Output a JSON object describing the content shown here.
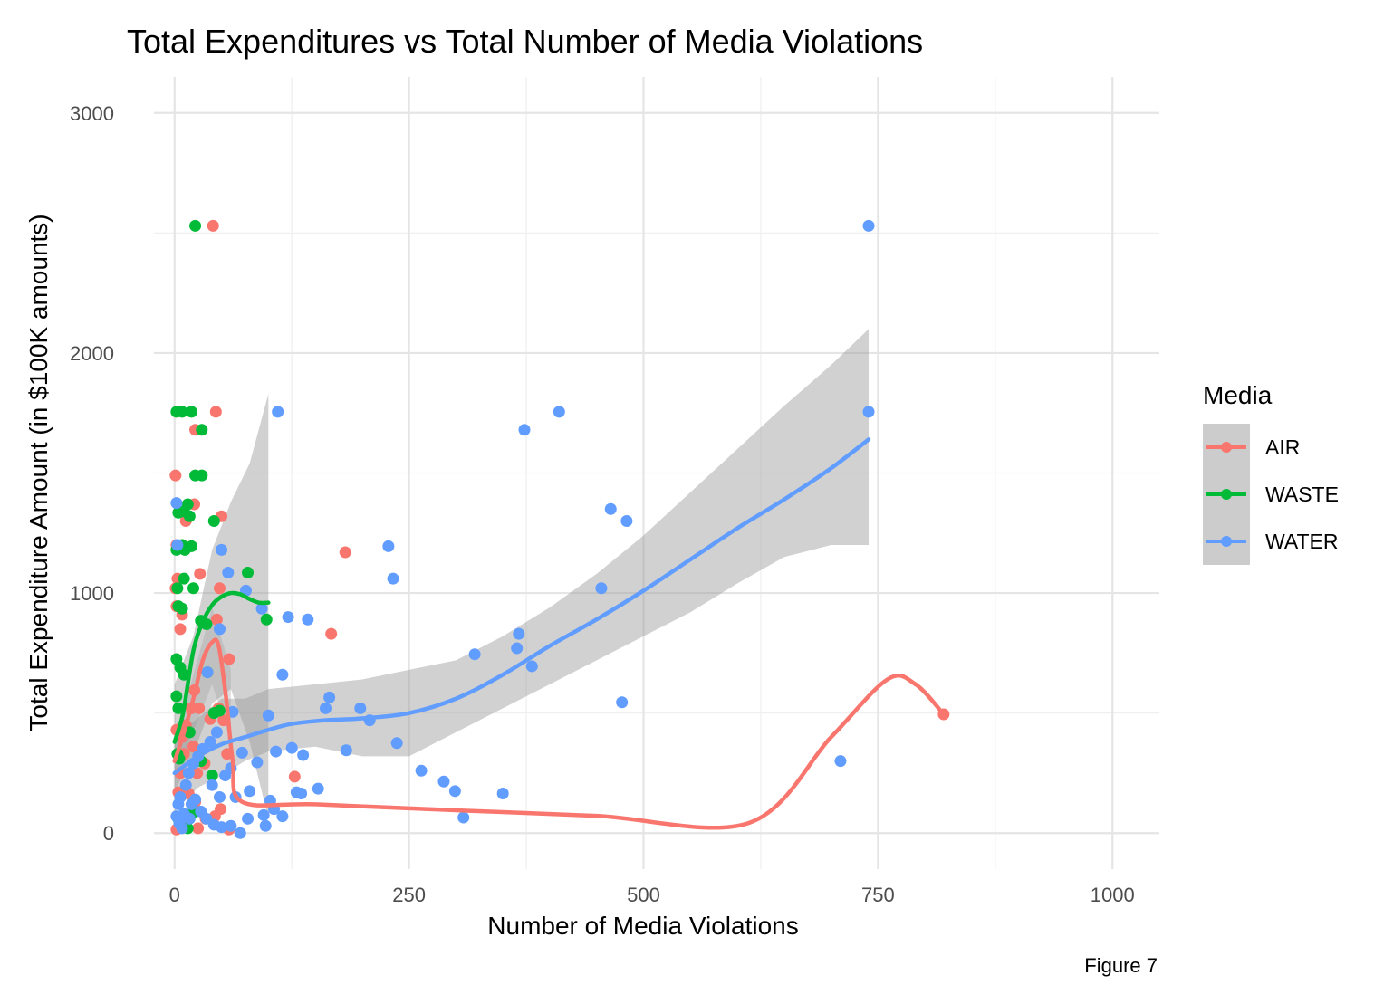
{
  "chart_data": {
    "type": "scatter",
    "title": "Total Expenditures vs Total Number of Media Violations",
    "xlabel": "Number of Media Violations",
    "ylabel": "Total Expenditure Amount (in $100K amounts)",
    "caption": "Figure 7",
    "xlim": [
      -22,
      1050
    ],
    "ylim": [
      -150,
      3150
    ],
    "x_ticks": [
      0,
      250,
      500,
      750,
      1000
    ],
    "y_ticks": [
      0,
      1000,
      2000,
      3000
    ],
    "x_tick_labels": [
      "0",
      "250",
      "500",
      "750",
      "1000"
    ],
    "y_tick_labels": [
      "0",
      "1000",
      "2000",
      "3000"
    ],
    "grid": true,
    "legend": {
      "title": "Media",
      "position": "right"
    },
    "series": [
      {
        "name": "AIR",
        "color": "#F8766D",
        "points": [
          [
            41,
            2530
          ],
          [
            44,
            1755
          ],
          [
            1,
            1490
          ],
          [
            22,
            1680
          ],
          [
            21,
            1370
          ],
          [
            12,
            1300
          ],
          [
            50,
            1320
          ],
          [
            2,
            1200
          ],
          [
            3,
            1060
          ],
          [
            27,
            1080
          ],
          [
            1,
            1020
          ],
          [
            182,
            1170
          ],
          [
            45,
            890
          ],
          [
            8,
            910
          ],
          [
            6,
            850
          ],
          [
            48,
            1020
          ],
          [
            2,
            945
          ],
          [
            167,
            830
          ],
          [
            58,
            725
          ],
          [
            21,
            595
          ],
          [
            18,
            520
          ],
          [
            26,
            520
          ],
          [
            38,
            475
          ],
          [
            47,
            520
          ],
          [
            12,
            450
          ],
          [
            8,
            400
          ],
          [
            2,
            430
          ],
          [
            52,
            470
          ],
          [
            20,
            360
          ],
          [
            10,
            330
          ],
          [
            56,
            330
          ],
          [
            32,
            290
          ],
          [
            6,
            250
          ],
          [
            24,
            250
          ],
          [
            4,
            170
          ],
          [
            15,
            165
          ],
          [
            22,
            130
          ],
          [
            49,
            100
          ],
          [
            43,
            70
          ],
          [
            33,
            60
          ],
          [
            7,
            45
          ],
          [
            12,
            30
          ],
          [
            58,
            15
          ],
          [
            2,
            15
          ],
          [
            25,
            20
          ],
          [
            128,
            235
          ],
          [
            820,
            495
          ]
        ],
        "smooth": [
          [
            0,
            300
          ],
          [
            10,
            420
          ],
          [
            20,
            560
          ],
          [
            30,
            720
          ],
          [
            40,
            795
          ],
          [
            47,
            780
          ],
          [
            55,
            560
          ],
          [
            62,
            300
          ],
          [
            72,
            130
          ],
          [
            150,
            120
          ],
          [
            300,
            95
          ],
          [
            450,
            72
          ],
          [
            612,
            42
          ],
          [
            700,
            400
          ],
          [
            760,
            640
          ],
          [
            790,
            620
          ],
          [
            820,
            495
          ]
        ]
      },
      {
        "name": "WASTE",
        "color": "#00BA38",
        "points": [
          [
            22,
            2530
          ],
          [
            2,
            1755
          ],
          [
            8,
            1755
          ],
          [
            18,
            1755
          ],
          [
            29,
            1680
          ],
          [
            22,
            1490
          ],
          [
            29,
            1490
          ],
          [
            14,
            1370
          ],
          [
            10,
            1340
          ],
          [
            4,
            1335
          ],
          [
            16,
            1320
          ],
          [
            42,
            1300
          ],
          [
            8,
            1200
          ],
          [
            18,
            1195
          ],
          [
            11,
            1180
          ],
          [
            2,
            1180
          ],
          [
            10,
            1060
          ],
          [
            3,
            1020
          ],
          [
            20,
            1020
          ],
          [
            78,
            1085
          ],
          [
            4,
            945
          ],
          [
            8,
            935
          ],
          [
            98,
            890
          ],
          [
            34,
            870
          ],
          [
            28,
            885
          ],
          [
            2,
            725
          ],
          [
            6,
            690
          ],
          [
            10,
            660
          ],
          [
            35,
            670
          ],
          [
            2,
            570
          ],
          [
            4,
            520
          ],
          [
            42,
            500
          ],
          [
            48,
            510
          ],
          [
            16,
            420
          ],
          [
            3,
            330
          ],
          [
            5,
            310
          ],
          [
            28,
            300
          ],
          [
            40,
            240
          ],
          [
            22,
            90
          ],
          [
            18,
            80
          ],
          [
            4,
            60
          ],
          [
            14,
            20
          ]
        ],
        "smooth": [
          [
            0,
            380
          ],
          [
            5,
            440
          ],
          [
            10,
            520
          ],
          [
            20,
            760
          ],
          [
            30,
            880
          ],
          [
            40,
            950
          ],
          [
            50,
            985
          ],
          [
            60,
            1000
          ],
          [
            70,
            995
          ],
          [
            80,
            975
          ],
          [
            90,
            960
          ],
          [
            100,
            960
          ]
        ]
      },
      {
        "name": "WATER",
        "color": "#619CFF",
        "points": [
          [
            740,
            2530
          ],
          [
            740,
            1755
          ],
          [
            410,
            1755
          ],
          [
            110,
            1755
          ],
          [
            373,
            1680
          ],
          [
            465,
            1350
          ],
          [
            482,
            1300
          ],
          [
            228,
            1195
          ],
          [
            2,
            1375
          ],
          [
            3,
            1200
          ],
          [
            50,
            1180
          ],
          [
            233,
            1060
          ],
          [
            57,
            1085
          ],
          [
            455,
            1020
          ],
          [
            76,
            1010
          ],
          [
            121,
            900
          ],
          [
            142,
            890
          ],
          [
            93,
            935
          ],
          [
            367,
            830
          ],
          [
            365,
            770
          ],
          [
            320,
            745
          ],
          [
            381,
            695
          ],
          [
            48,
            850
          ],
          [
            35,
            670
          ],
          [
            115,
            660
          ],
          [
            477,
            545
          ],
          [
            165,
            565
          ],
          [
            198,
            520
          ],
          [
            161,
            520
          ],
          [
            208,
            470
          ],
          [
            62,
            505
          ],
          [
            100,
            490
          ],
          [
            237,
            375
          ],
          [
            183,
            345
          ],
          [
            108,
            340
          ],
          [
            125,
            355
          ],
          [
            137,
            325
          ],
          [
            72,
            335
          ],
          [
            88,
            295
          ],
          [
            710,
            300
          ],
          [
            263,
            260
          ],
          [
            287,
            215
          ],
          [
            299,
            175
          ],
          [
            350,
            165
          ],
          [
            308,
            65
          ],
          [
            130,
            170
          ],
          [
            135,
            165
          ],
          [
            153,
            185
          ],
          [
            80,
            175
          ],
          [
            65,
            150
          ],
          [
            102,
            135
          ],
          [
            78,
            60
          ],
          [
            95,
            75
          ],
          [
            106,
            100
          ],
          [
            115,
            70
          ],
          [
            97,
            30
          ],
          [
            60,
            30
          ],
          [
            50,
            25
          ],
          [
            42,
            35
          ],
          [
            34,
            60
          ],
          [
            28,
            90
          ],
          [
            18,
            120
          ],
          [
            10,
            80
          ],
          [
            5,
            40
          ],
          [
            8,
            20
          ],
          [
            2,
            70
          ],
          [
            4,
            120
          ],
          [
            6,
            150
          ],
          [
            12,
            200
          ],
          [
            15,
            250
          ],
          [
            20,
            290
          ],
          [
            25,
            320
          ],
          [
            30,
            350
          ],
          [
            38,
            380
          ],
          [
            45,
            420
          ],
          [
            54,
            240
          ],
          [
            60,
            270
          ],
          [
            70,
            0
          ],
          [
            40,
            200
          ],
          [
            48,
            150
          ],
          [
            22,
            140
          ],
          [
            16,
            60
          ]
        ],
        "smooth": [
          [
            0,
            250
          ],
          [
            25,
            320
          ],
          [
            50,
            370
          ],
          [
            75,
            400
          ],
          [
            100,
            430
          ],
          [
            125,
            455
          ],
          [
            160,
            470
          ],
          [
            200,
            478
          ],
          [
            250,
            500
          ],
          [
            300,
            560
          ],
          [
            350,
            660
          ],
          [
            400,
            780
          ],
          [
            450,
            890
          ],
          [
            500,
            1010
          ],
          [
            550,
            1140
          ],
          [
            600,
            1270
          ],
          [
            650,
            1390
          ],
          [
            700,
            1520
          ],
          [
            740,
            1640
          ]
        ],
        "band": [
          [
            0,
            90,
            400
          ],
          [
            25,
            190,
            480
          ],
          [
            50,
            240,
            560
          ],
          [
            75,
            300,
            560
          ],
          [
            100,
            340,
            600
          ],
          [
            150,
            360,
            620
          ],
          [
            200,
            320,
            640
          ],
          [
            250,
            320,
            680
          ],
          [
            300,
            420,
            720
          ],
          [
            350,
            520,
            820
          ],
          [
            400,
            620,
            940
          ],
          [
            450,
            720,
            1080
          ],
          [
            500,
            820,
            1240
          ],
          [
            550,
            920,
            1420
          ],
          [
            600,
            1040,
            1600
          ],
          [
            650,
            1150,
            1780
          ],
          [
            700,
            1200,
            1950
          ],
          [
            740,
            1200,
            2100
          ]
        ]
      }
    ],
    "waste_band": [
      [
        0,
        170,
        620
      ],
      [
        20,
        330,
        820
      ],
      [
        40,
        540,
        1180
      ],
      [
        60,
        600,
        1380
      ],
      [
        80,
        380,
        1540
      ],
      [
        100,
        60,
        1830
      ]
    ],
    "air_band": [
      [
        0,
        230,
        380
      ],
      [
        40,
        620,
        940
      ],
      [
        60,
        380,
        680
      ]
    ]
  }
}
